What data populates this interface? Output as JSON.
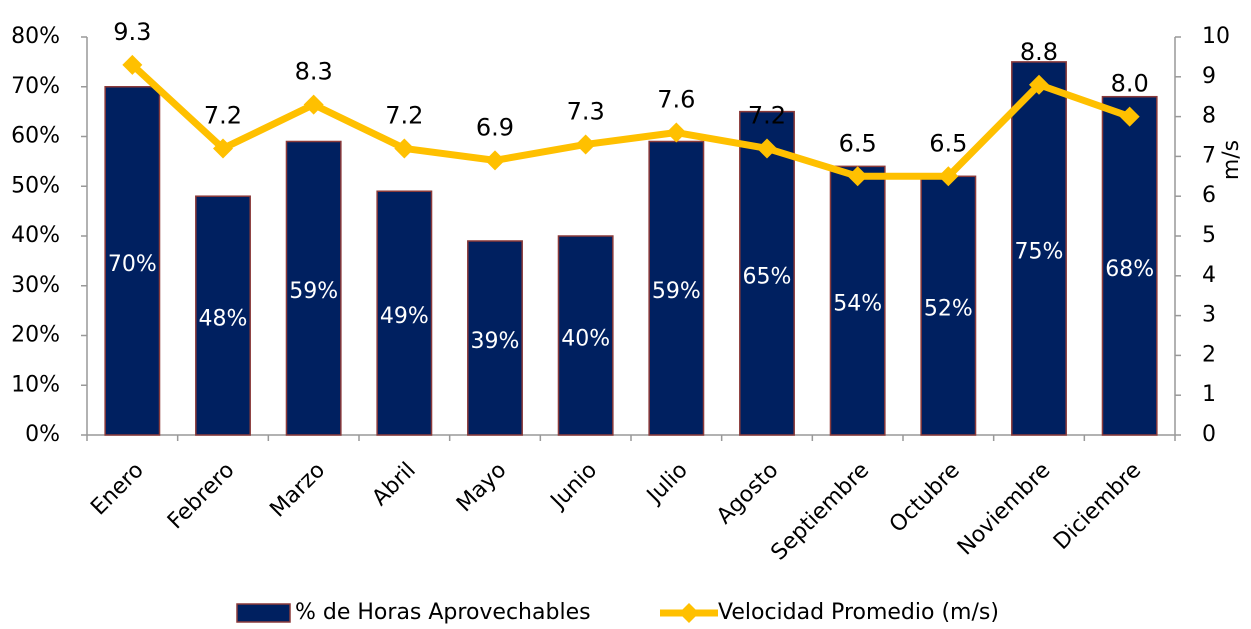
{
  "chart_data": {
    "type": "bar",
    "categories": [
      "Enero",
      "Febrero",
      "Marzo",
      "Abril",
      "Mayo",
      "Junio",
      "Julio",
      "Agosto",
      "Septiembre",
      "Octubre",
      "Noviembre",
      "Diciembre"
    ],
    "series": [
      {
        "name": "% de Horas Aprovechables",
        "type": "bar",
        "color": "#002060",
        "values": [
          70,
          48,
          59,
          49,
          39,
          40,
          59,
          65,
          54,
          52,
          75,
          68
        ],
        "value_labels": [
          "70%",
          "48%",
          "59%",
          "49%",
          "39%",
          "40%",
          "59%",
          "65%",
          "54%",
          "52%",
          "75%",
          "68%"
        ]
      },
      {
        "name": "Velocidad Promedio (m/s)",
        "type": "line",
        "axis": "y2",
        "color": "#ffc000",
        "values": [
          9.3,
          7.2,
          8.3,
          7.2,
          6.9,
          7.3,
          7.6,
          7.2,
          6.5,
          6.5,
          8.8,
          8.0
        ],
        "value_labels": [
          "9.3",
          "7.2",
          "8.3",
          "7.2",
          "6.9",
          "7.3",
          "7.6",
          "7.2",
          "6.5",
          "6.5",
          "8.8",
          "8.0"
        ]
      }
    ],
    "ylim": [
      0,
      80
    ],
    "yticks": [
      {
        "value": 0,
        "label": "0%"
      },
      {
        "value": 10,
        "label": "10%"
      },
      {
        "value": 20,
        "label": "20%"
      },
      {
        "value": 30,
        "label": "30%"
      },
      {
        "value": 40,
        "label": "40%"
      },
      {
        "value": 50,
        "label": "50%"
      },
      {
        "value": 60,
        "label": "60%"
      },
      {
        "value": 70,
        "label": "70%"
      },
      {
        "value": 80,
        "label": "80%"
      }
    ],
    "y2lim": [
      0,
      10
    ],
    "y2ticks": [
      0,
      1,
      2,
      3,
      4,
      5,
      6,
      7,
      8,
      9,
      10
    ],
    "y2label": "m/s",
    "legend": "bottom",
    "grid": false
  }
}
